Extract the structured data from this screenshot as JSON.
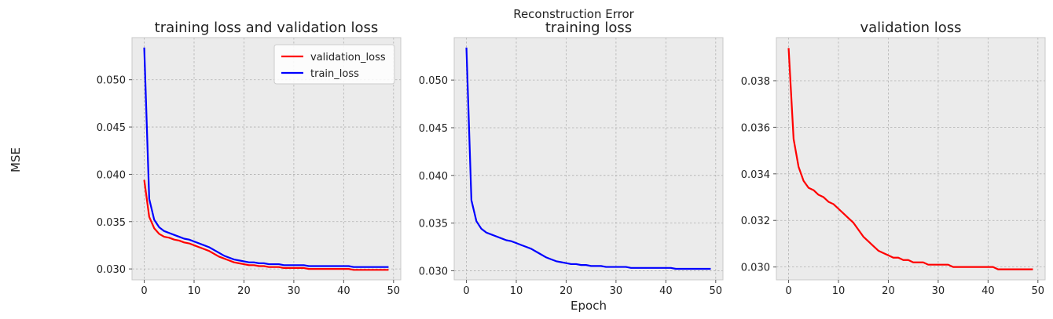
{
  "figure": {
    "suptitle": "Reconstruction Error",
    "ylabel": "MSE",
    "xlabel": "Epoch"
  },
  "colors": {
    "validation_loss": "#ff0000",
    "train_loss": "#0000ff",
    "axes_bg": "#ebebeb",
    "grid": "#b0b0b0"
  },
  "chart_data": [
    {
      "type": "line",
      "title": "training loss and validation loss",
      "xlabel": "",
      "ylabel": "",
      "xlim": [
        -2.45,
        51.45
      ],
      "ylim": [
        0.02885,
        0.05445
      ],
      "xticks": [
        0,
        10,
        20,
        30,
        40,
        50
      ],
      "yticks": [
        0.03,
        0.035,
        0.04,
        0.045,
        0.05
      ],
      "ytick_labels": [
        "0.030",
        "0.035",
        "0.040",
        "0.045",
        "0.050"
      ],
      "grid": true,
      "legend_position": "upper right",
      "series": [
        {
          "name": "validation_loss",
          "color": "#ff0000",
          "x": [
            0,
            1,
            2,
            3,
            4,
            5,
            6,
            7,
            8,
            9,
            10,
            11,
            12,
            13,
            14,
            15,
            16,
            17,
            18,
            19,
            20,
            21,
            22,
            23,
            24,
            25,
            26,
            27,
            28,
            29,
            30,
            31,
            32,
            33,
            34,
            35,
            36,
            37,
            38,
            39,
            40,
            41,
            42,
            43,
            44,
            45,
            46,
            47,
            48,
            49
          ],
          "values": [
            0.0394,
            0.0355,
            0.0343,
            0.0337,
            0.0334,
            0.0333,
            0.0331,
            0.033,
            0.0328,
            0.0327,
            0.0325,
            0.0323,
            0.0321,
            0.0319,
            0.0316,
            0.0313,
            0.0311,
            0.0309,
            0.0307,
            0.0306,
            0.0305,
            0.0304,
            0.0304,
            0.0303,
            0.0303,
            0.0302,
            0.0302,
            0.0302,
            0.0301,
            0.0301,
            0.0301,
            0.0301,
            0.0301,
            0.03,
            0.03,
            0.03,
            0.03,
            0.03,
            0.03,
            0.03,
            0.03,
            0.03,
            0.0299,
            0.0299,
            0.0299,
            0.0299,
            0.0299,
            0.0299,
            0.0299,
            0.0299
          ]
        },
        {
          "name": "train_loss",
          "color": "#0000ff",
          "x": [
            0,
            1,
            2,
            3,
            4,
            5,
            6,
            7,
            8,
            9,
            10,
            11,
            12,
            13,
            14,
            15,
            16,
            17,
            18,
            19,
            20,
            21,
            22,
            23,
            24,
            25,
            26,
            27,
            28,
            29,
            30,
            31,
            32,
            33,
            34,
            35,
            36,
            37,
            38,
            39,
            40,
            41,
            42,
            43,
            44,
            45,
            46,
            47,
            48,
            49
          ],
          "values": [
            0.0534,
            0.0374,
            0.0352,
            0.0344,
            0.034,
            0.0338,
            0.0336,
            0.0334,
            0.0332,
            0.0331,
            0.0329,
            0.0327,
            0.0325,
            0.0323,
            0.032,
            0.0317,
            0.0314,
            0.0312,
            0.031,
            0.0309,
            0.0308,
            0.0307,
            0.0307,
            0.0306,
            0.0306,
            0.0305,
            0.0305,
            0.0305,
            0.0304,
            0.0304,
            0.0304,
            0.0304,
            0.0304,
            0.0303,
            0.0303,
            0.0303,
            0.0303,
            0.0303,
            0.0303,
            0.0303,
            0.0303,
            0.0303,
            0.0302,
            0.0302,
            0.0302,
            0.0302,
            0.0302,
            0.0302,
            0.0302,
            0.0302
          ]
        }
      ]
    },
    {
      "type": "line",
      "title": "training loss",
      "xlabel": "Epoch",
      "ylabel": "",
      "xlim": [
        -2.45,
        51.45
      ],
      "ylim": [
        0.02905,
        0.05445
      ],
      "xticks": [
        0,
        10,
        20,
        30,
        40,
        50
      ],
      "yticks": [
        0.03,
        0.035,
        0.04,
        0.045,
        0.05
      ],
      "ytick_labels": [
        "0.030",
        "0.035",
        "0.040",
        "0.045",
        "0.050"
      ],
      "grid": true,
      "series": [
        {
          "name": "train_loss",
          "color": "#0000ff",
          "x": [
            0,
            1,
            2,
            3,
            4,
            5,
            6,
            7,
            8,
            9,
            10,
            11,
            12,
            13,
            14,
            15,
            16,
            17,
            18,
            19,
            20,
            21,
            22,
            23,
            24,
            25,
            26,
            27,
            28,
            29,
            30,
            31,
            32,
            33,
            34,
            35,
            36,
            37,
            38,
            39,
            40,
            41,
            42,
            43,
            44,
            45,
            46,
            47,
            48,
            49
          ],
          "values": [
            0.0534,
            0.0374,
            0.0352,
            0.0344,
            0.034,
            0.0338,
            0.0336,
            0.0334,
            0.0332,
            0.0331,
            0.0329,
            0.0327,
            0.0325,
            0.0323,
            0.032,
            0.0317,
            0.0314,
            0.0312,
            0.031,
            0.0309,
            0.0308,
            0.0307,
            0.0307,
            0.0306,
            0.0306,
            0.0305,
            0.0305,
            0.0305,
            0.0304,
            0.0304,
            0.0304,
            0.0304,
            0.0304,
            0.0303,
            0.0303,
            0.0303,
            0.0303,
            0.0303,
            0.0303,
            0.0303,
            0.0303,
            0.0303,
            0.0302,
            0.0302,
            0.0302,
            0.0302,
            0.0302,
            0.0302,
            0.0302,
            0.0302
          ]
        }
      ]
    },
    {
      "type": "line",
      "title": "validation loss",
      "xlabel": "",
      "ylabel": "",
      "xlim": [
        -2.45,
        51.45
      ],
      "ylim": [
        0.02945,
        0.03985
      ],
      "xticks": [
        0,
        10,
        20,
        30,
        40,
        50
      ],
      "yticks": [
        0.03,
        0.032,
        0.034,
        0.036,
        0.038
      ],
      "ytick_labels": [
        "0.030",
        "0.032",
        "0.034",
        "0.036",
        "0.038"
      ],
      "grid": true,
      "series": [
        {
          "name": "validation_loss",
          "color": "#ff0000",
          "x": [
            0,
            1,
            2,
            3,
            4,
            5,
            6,
            7,
            8,
            9,
            10,
            11,
            12,
            13,
            14,
            15,
            16,
            17,
            18,
            19,
            20,
            21,
            22,
            23,
            24,
            25,
            26,
            27,
            28,
            29,
            30,
            31,
            32,
            33,
            34,
            35,
            36,
            37,
            38,
            39,
            40,
            41,
            42,
            43,
            44,
            45,
            46,
            47,
            48,
            49
          ],
          "values": [
            0.0394,
            0.0355,
            0.0343,
            0.0337,
            0.0334,
            0.0333,
            0.0331,
            0.033,
            0.0328,
            0.0327,
            0.0325,
            0.0323,
            0.0321,
            0.0319,
            0.0316,
            0.0313,
            0.0311,
            0.0309,
            0.0307,
            0.0306,
            0.0305,
            0.0304,
            0.0304,
            0.0303,
            0.0303,
            0.0302,
            0.0302,
            0.0302,
            0.0301,
            0.0301,
            0.0301,
            0.0301,
            0.0301,
            0.03,
            0.03,
            0.03,
            0.03,
            0.03,
            0.03,
            0.03,
            0.03,
            0.03,
            0.0299,
            0.0299,
            0.0299,
            0.0299,
            0.0299,
            0.0299,
            0.0299,
            0.0299
          ]
        }
      ]
    }
  ]
}
